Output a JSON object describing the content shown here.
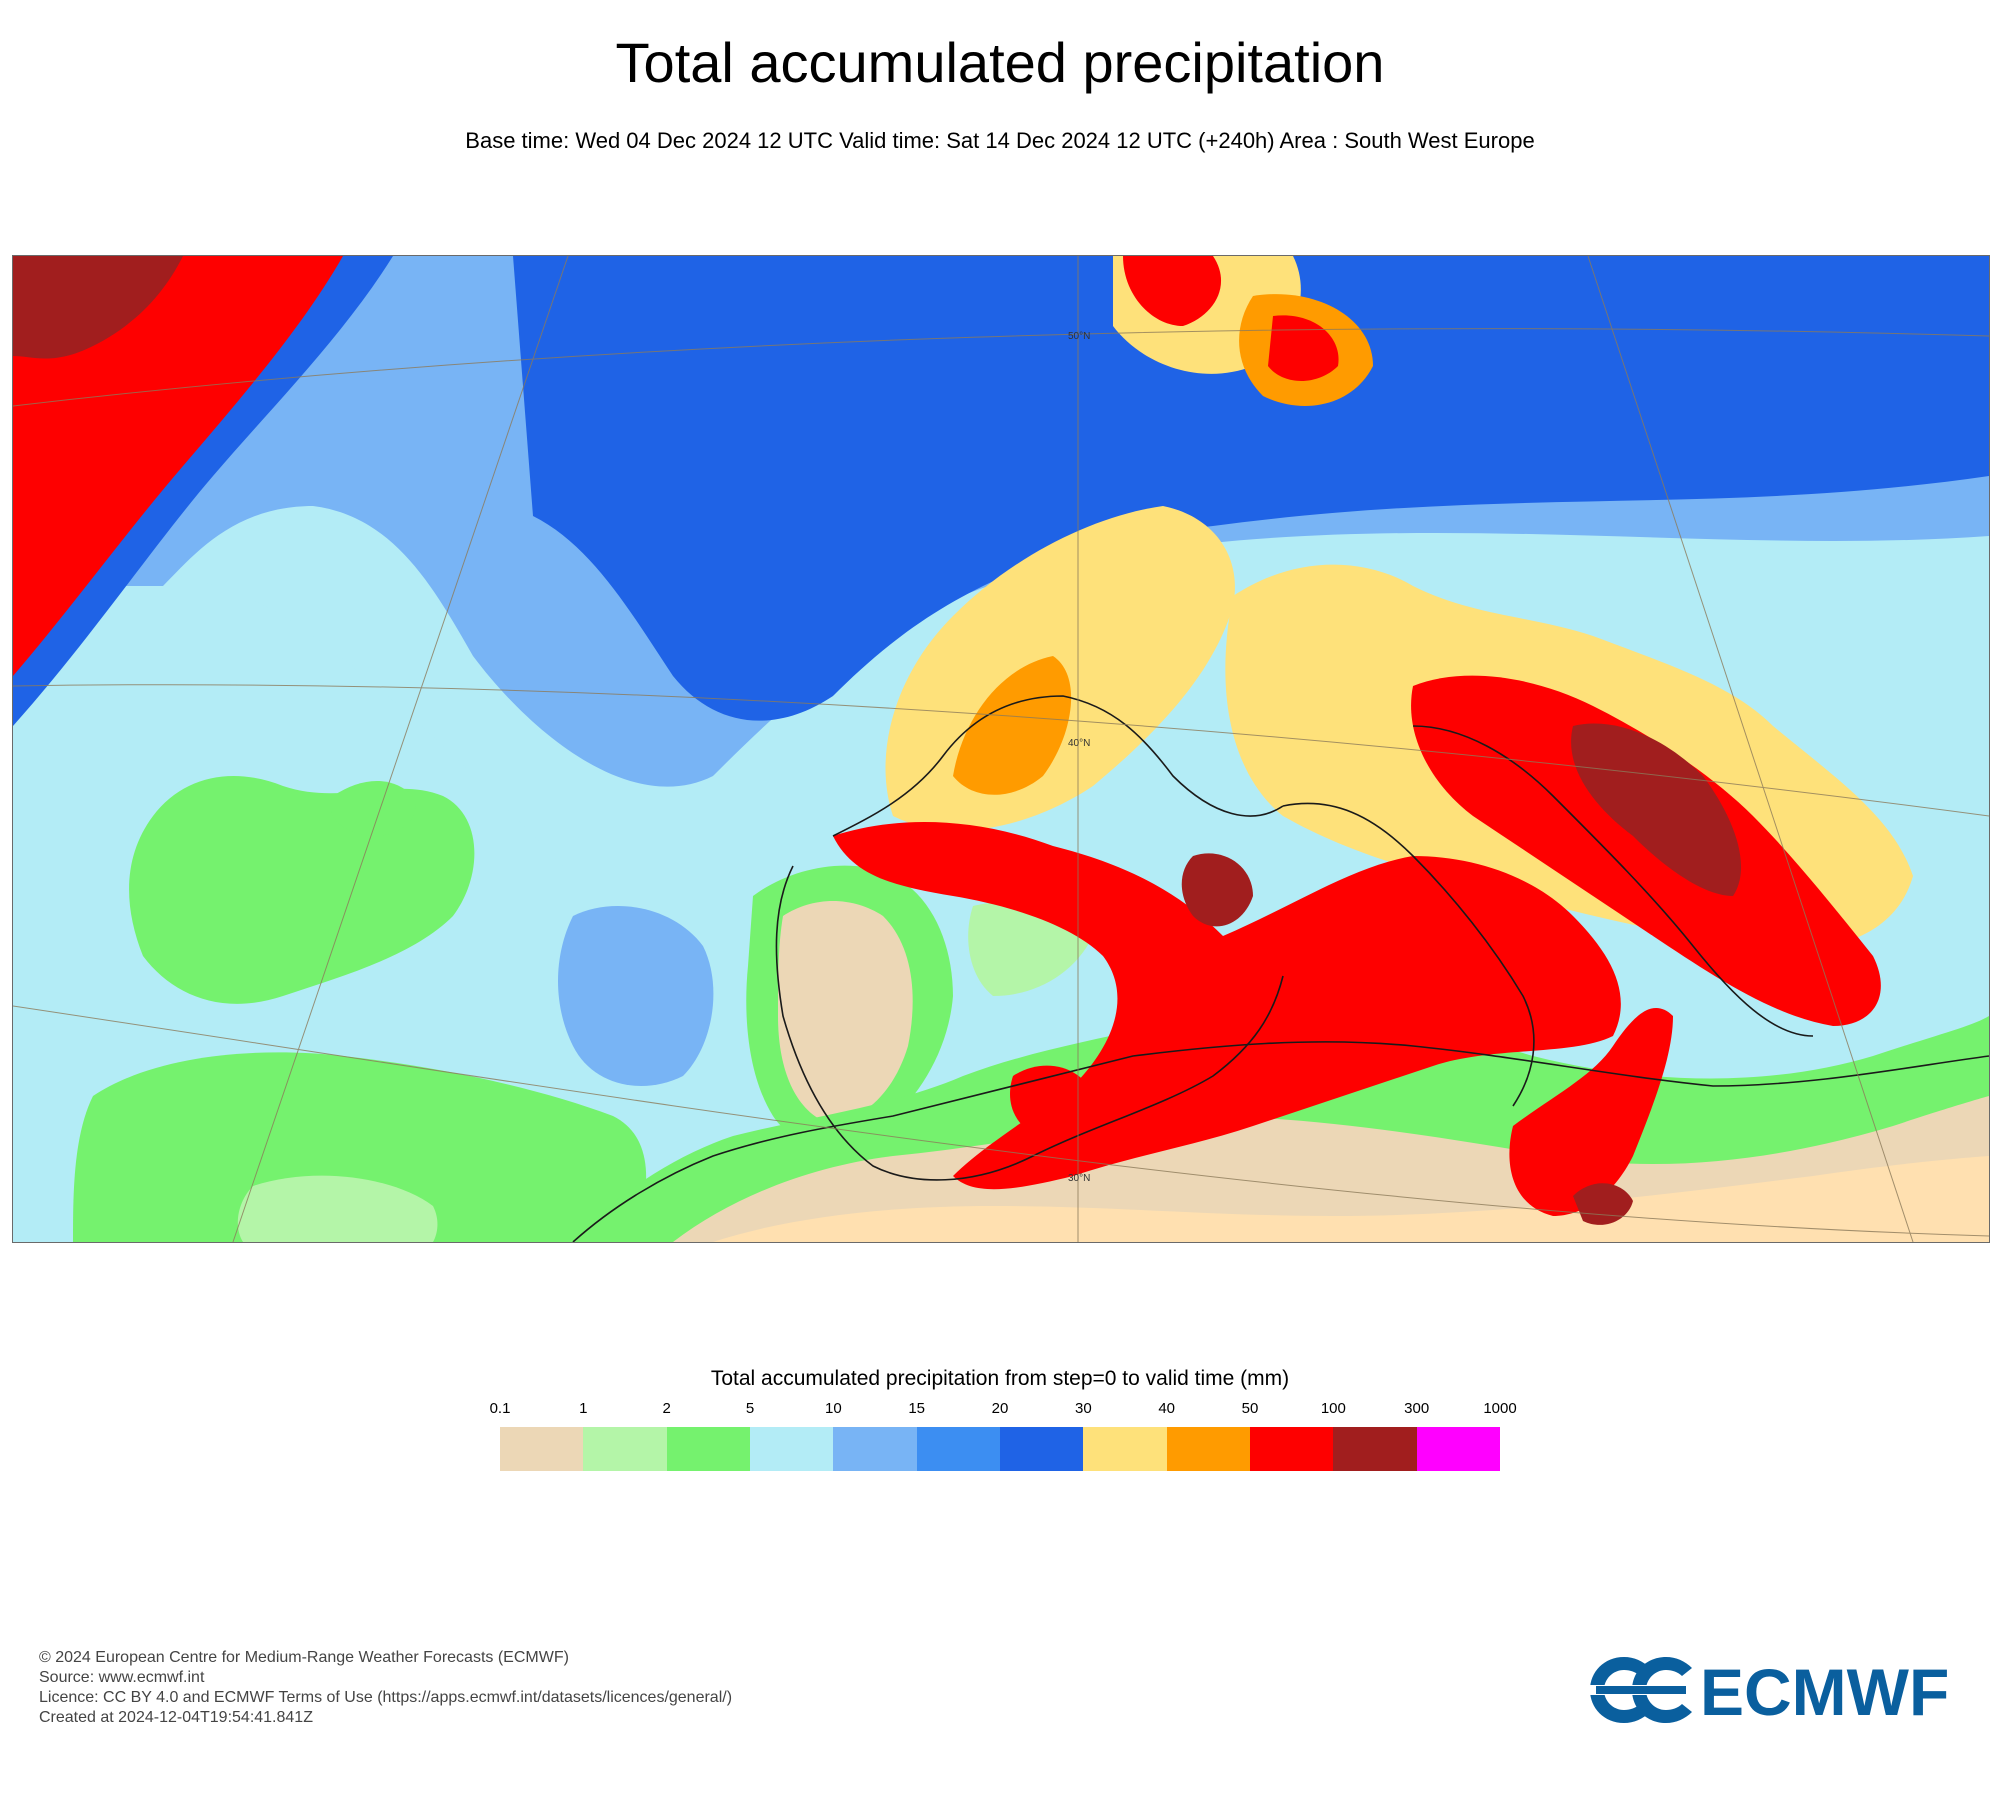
{
  "title": "Total accumulated precipitation",
  "subtitle": "Base time: Wed 04 Dec 2024 12 UTC Valid time: Sat 14 Dec 2024 12 UTC (+240h) Area : South West Europe",
  "map": {
    "area": "South West Europe",
    "grid_labels": [
      "50°N",
      "40°N",
      "30°N"
    ],
    "palette": {
      "0.1-1": "#ecd7b6",
      "1-2": "#b4f5a8",
      "2-5": "#75f26e",
      "5-10": "#b3ecf6",
      "10-15": "#78b4f5",
      "15-20": "#3c8ef2",
      "20-30": "#1f63e6",
      "30-40": "#fee17a",
      "40-50": "#ff9b00",
      "50-100": "#fe0000",
      "100-300": "#a11e1e",
      "300-1000": "#ff00ff"
    }
  },
  "legend": {
    "title": "Total accumulated precipitation from step=0 to valid time (mm)",
    "ticks": [
      "0.1",
      "1",
      "2",
      "5",
      "10",
      "15",
      "20",
      "30",
      "40",
      "50",
      "100",
      "300",
      "1000"
    ],
    "colors": [
      "#ecd7b6",
      "#b4f5a8",
      "#75f26e",
      "#b3ecf6",
      "#78b4f5",
      "#3c8ef2",
      "#1f63e6",
      "#fee17a",
      "#ff9b00",
      "#fe0000",
      "#a11e1e",
      "#ff00ff"
    ]
  },
  "footer": {
    "line1": "© 2024 European Centre for Medium-Range Weather Forecasts (ECMWF)",
    "line2": "Source: www.ecmwf.int",
    "line3": "Licence: CC BY 4.0 and ECMWF Terms of Use (https://apps.ecmwf.int/datasets/licences/general/)",
    "line4": "Created at 2024-12-04T19:54:41.841Z"
  },
  "logo": {
    "text": "ECMWF",
    "color": "#0a5f9e"
  }
}
